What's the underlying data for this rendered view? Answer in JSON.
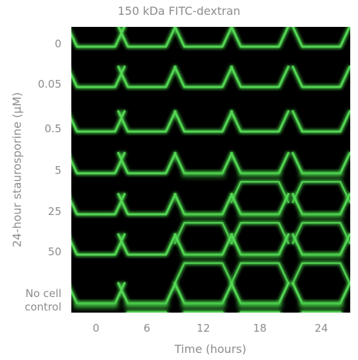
{
  "title": "150 kDa FITC-dextran",
  "y_axis_label": "24-hour staurosporine (µM)",
  "x_axis_label": "Time (hours)",
  "rows": [
    {
      "label": "0"
    },
    {
      "label": "0.05"
    },
    {
      "label": "0.5"
    },
    {
      "label": "5"
    },
    {
      "label": "25"
    },
    {
      "label": "50"
    },
    {
      "label": "No cell\ncontrol"
    }
  ],
  "columns": [
    {
      "label": "0"
    },
    {
      "label": "6"
    },
    {
      "label": "12"
    },
    {
      "label": "18"
    },
    {
      "label": "24"
    }
  ],
  "colors": {
    "background": "#000000",
    "channel": "#3fbf3f",
    "channel_bright": "#5be05b",
    "label": "#8c8c8c"
  }
}
